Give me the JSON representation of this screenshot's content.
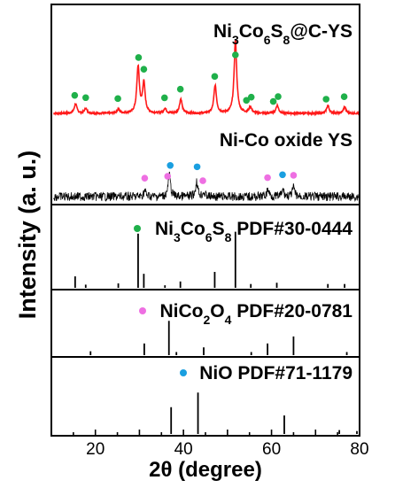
{
  "chart_data": {
    "type": "line",
    "xlabel": "2θ (degree)",
    "ylabel": "Intensity (a. u.)",
    "xlim": [
      10,
      80
    ],
    "xticks": [
      "20",
      "40",
      "60",
      "80"
    ],
    "panels": [
      {
        "label_parts": [
          "Ni",
          "3",
          "Co",
          "6",
          "S",
          "8",
          "@C-YS"
        ],
        "kind": "xrd-pattern",
        "color": "#ff1a1a",
        "marker_color": "#1fb04a",
        "peaks": [
          {
            "x": 15.5,
            "h": 0.12
          },
          {
            "x": 17.8,
            "h": 0.06
          },
          {
            "x": 25.2,
            "h": 0.05
          },
          {
            "x": 29.7,
            "h": 0.58
          },
          {
            "x": 31.0,
            "h": 0.38
          },
          {
            "x": 35.8,
            "h": 0.06
          },
          {
            "x": 39.4,
            "h": 0.18
          },
          {
            "x": 47.2,
            "h": 0.35
          },
          {
            "x": 51.8,
            "h": 0.92
          },
          {
            "x": 55.2,
            "h": 0.08
          },
          {
            "x": 61.3,
            "h": 0.1
          },
          {
            "x": 72.8,
            "h": 0.1
          },
          {
            "x": 76.6,
            "h": 0.08
          }
        ],
        "markers": [
          15.3,
          17.8,
          25.1,
          29.8,
          31.0,
          35.7,
          39.3,
          47.1,
          51.8,
          54.3,
          55.4,
          60.4,
          61.5,
          72.4,
          76.5
        ]
      },
      {
        "label_parts": [
          "Ni-Co oxide YS"
        ],
        "kind": "xrd-noisy",
        "color": "#000000",
        "peaks": [
          {
            "x": 31.2,
            "h": 0.15
          },
          {
            "x": 36.8,
            "h": 0.55
          },
          {
            "x": 43.0,
            "h": 0.38
          },
          {
            "x": 44.6,
            "h": 0.1
          },
          {
            "x": 59.2,
            "h": 0.18
          },
          {
            "x": 62.6,
            "h": 0.16
          },
          {
            "x": 65.0,
            "h": 0.22
          }
        ],
        "markers_pink": [
          31.2,
          36.4,
          44.4,
          59.1,
          65.0
        ],
        "markers_blue": [
          37.0,
          43.1,
          62.5
        ]
      },
      {
        "label_parts": [
          "Ni",
          "3",
          "Co",
          "6",
          "S",
          "8",
          " PDF#30-0444"
        ],
        "kind": "reference",
        "dot_color": "#1fb04a",
        "sticks": [
          {
            "x": 15.4,
            "h": 0.18
          },
          {
            "x": 17.8,
            "h": 0.05
          },
          {
            "x": 25.2,
            "h": 0.07
          },
          {
            "x": 29.7,
            "h": 0.85
          },
          {
            "x": 31.0,
            "h": 0.22
          },
          {
            "x": 35.8,
            "h": 0.04
          },
          {
            "x": 39.3,
            "h": 0.1
          },
          {
            "x": 47.1,
            "h": 0.25
          },
          {
            "x": 51.8,
            "h": 0.88
          },
          {
            "x": 55.3,
            "h": 0.06
          },
          {
            "x": 61.2,
            "h": 0.08
          },
          {
            "x": 72.8,
            "h": 0.06
          },
          {
            "x": 76.6,
            "h": 0.06
          }
        ]
      },
      {
        "label_parts": [
          "NiCo",
          "2",
          "O",
          "4",
          " PDF#20-0781"
        ],
        "kind": "reference",
        "dot_color": "#ee6fe2",
        "sticks": [
          {
            "x": 18.9,
            "h": 0.1
          },
          {
            "x": 31.1,
            "h": 0.3
          },
          {
            "x": 36.7,
            "h": 0.88
          },
          {
            "x": 38.4,
            "h": 0.08
          },
          {
            "x": 44.6,
            "h": 0.2
          },
          {
            "x": 55.4,
            "h": 0.08
          },
          {
            "x": 59.1,
            "h": 0.3
          },
          {
            "x": 65.0,
            "h": 0.48
          },
          {
            "x": 77.1,
            "h": 0.08
          }
        ]
      },
      {
        "label_parts": [
          "NiO PDF#71-1179"
        ],
        "kind": "reference",
        "dot_color": "#1a9fe0",
        "sticks": [
          {
            "x": 37.2,
            "h": 0.55
          },
          {
            "x": 43.3,
            "h": 0.85
          },
          {
            "x": 62.9,
            "h": 0.38
          },
          {
            "x": 75.4,
            "h": 0.08
          },
          {
            "x": 79.4,
            "h": 0.06
          }
        ]
      }
    ]
  }
}
